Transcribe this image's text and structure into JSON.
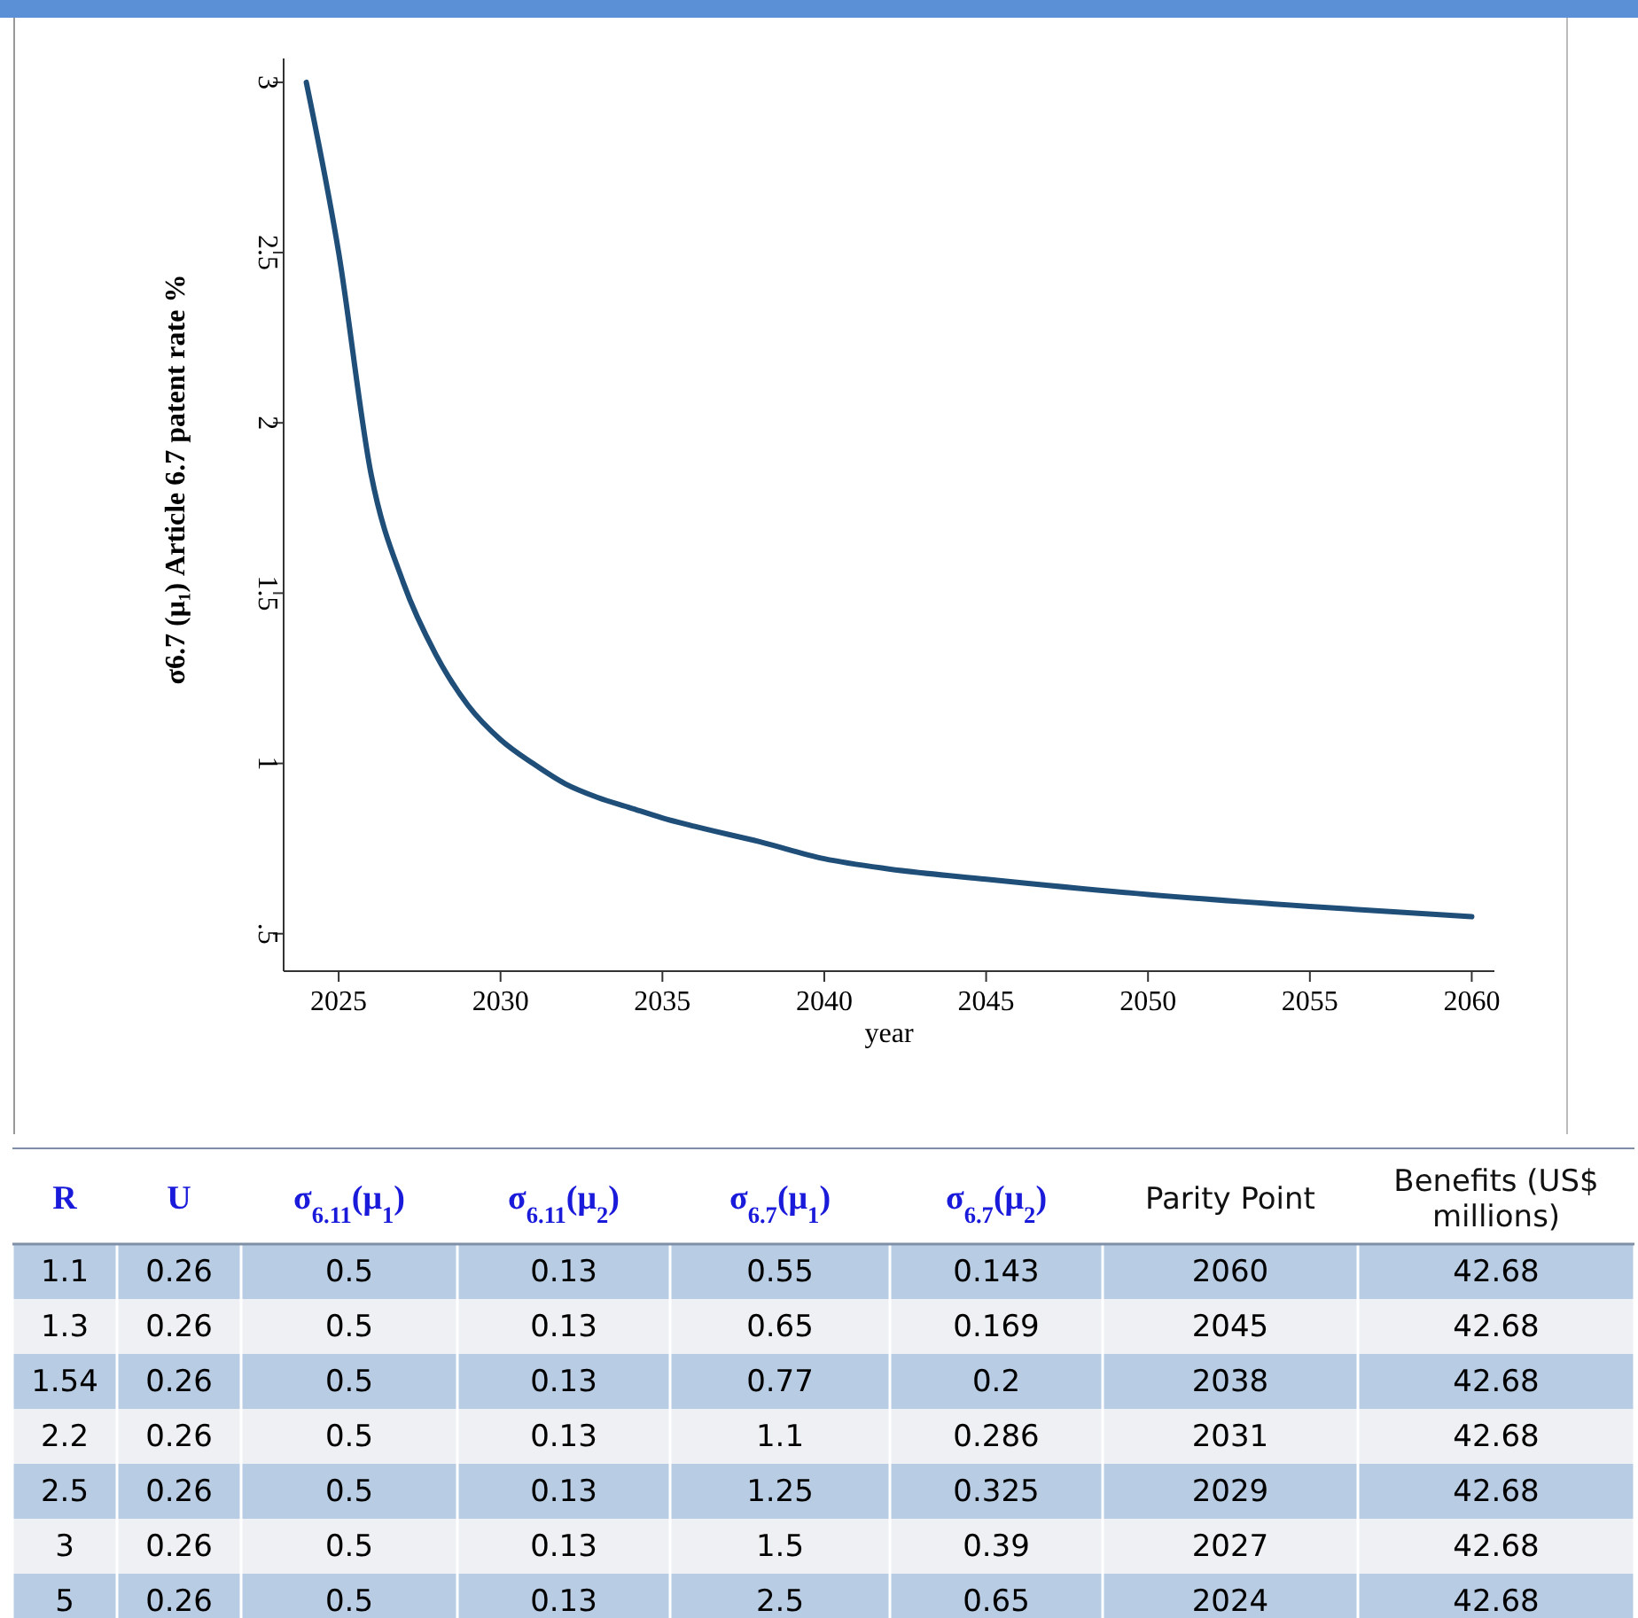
{
  "chart_data": [
    {
      "type": "line",
      "ylabel": "σ6.7 (μ₁)  Article 6.7 patent rate %",
      "xlabel": "year",
      "x": [
        2024,
        2025,
        2026,
        2027,
        2028,
        2029,
        2030,
        2031,
        2032,
        2033,
        2034,
        2035,
        2036,
        2038,
        2040,
        2042,
        2045,
        2050,
        2055,
        2060
      ],
      "series": [
        {
          "color": "#1f4e79",
          "values": [
            3.0,
            2.5,
            1.85,
            1.53,
            1.32,
            1.17,
            1.07,
            1.0,
            0.94,
            0.9,
            0.87,
            0.84,
            0.815,
            0.77,
            0.72,
            0.69,
            0.66,
            0.615,
            0.58,
            0.55
          ]
        }
      ],
      "xlim": [
        2023.3,
        2060.7
      ],
      "ylim": [
        0.39,
        3.07
      ],
      "xticks": [
        2025,
        2030,
        2035,
        2040,
        2045,
        2050,
        2055,
        2060
      ],
      "yticks": [
        {
          "value": 0.5,
          "label": ".5"
        },
        1,
        1.5,
        2,
        2.5,
        3
      ],
      "grid": false,
      "marker": "none",
      "line_style": "solid"
    },
    {
      "type": "heatmap",
      "data_labels": true,
      "ylabel": "R",
      "y_categories": [
        "1.1",
        "1.3",
        "1.54",
        "2.2",
        "2.5",
        "3",
        "5"
      ],
      "categories": [
        "U",
        "σ$_{6.11}$(μ$_{1}$)",
        "σ$_{6.11}$(μ$_{2}$)",
        "σ$_{6.7}$(μ$_{1}$)",
        "σ$_{6.7}$(μ$_{2}$)",
        "Parity Point",
        "Benefits (US$ millions)"
      ],
      "cells": [
        [
          0.26,
          0.5,
          0.13,
          0.55,
          0.143,
          2060,
          42.68
        ],
        [
          0.26,
          0.5,
          0.13,
          0.65,
          0.169,
          2045,
          42.68
        ],
        [
          0.26,
          0.5,
          0.13,
          0.77,
          0.2,
          2038,
          42.68
        ],
        [
          0.26,
          0.5,
          0.13,
          1.1,
          0.286,
          2031,
          42.68
        ],
        [
          0.26,
          0.5,
          0.13,
          1.25,
          0.325,
          2029,
          42.68
        ],
        [
          0.26,
          0.5,
          0.13,
          1.5,
          0.39,
          2027,
          42.68
        ],
        [
          0.26,
          0.5,
          0.13,
          2.5,
          0.65,
          2024,
          42.68
        ]
      ]
    }
  ]
}
